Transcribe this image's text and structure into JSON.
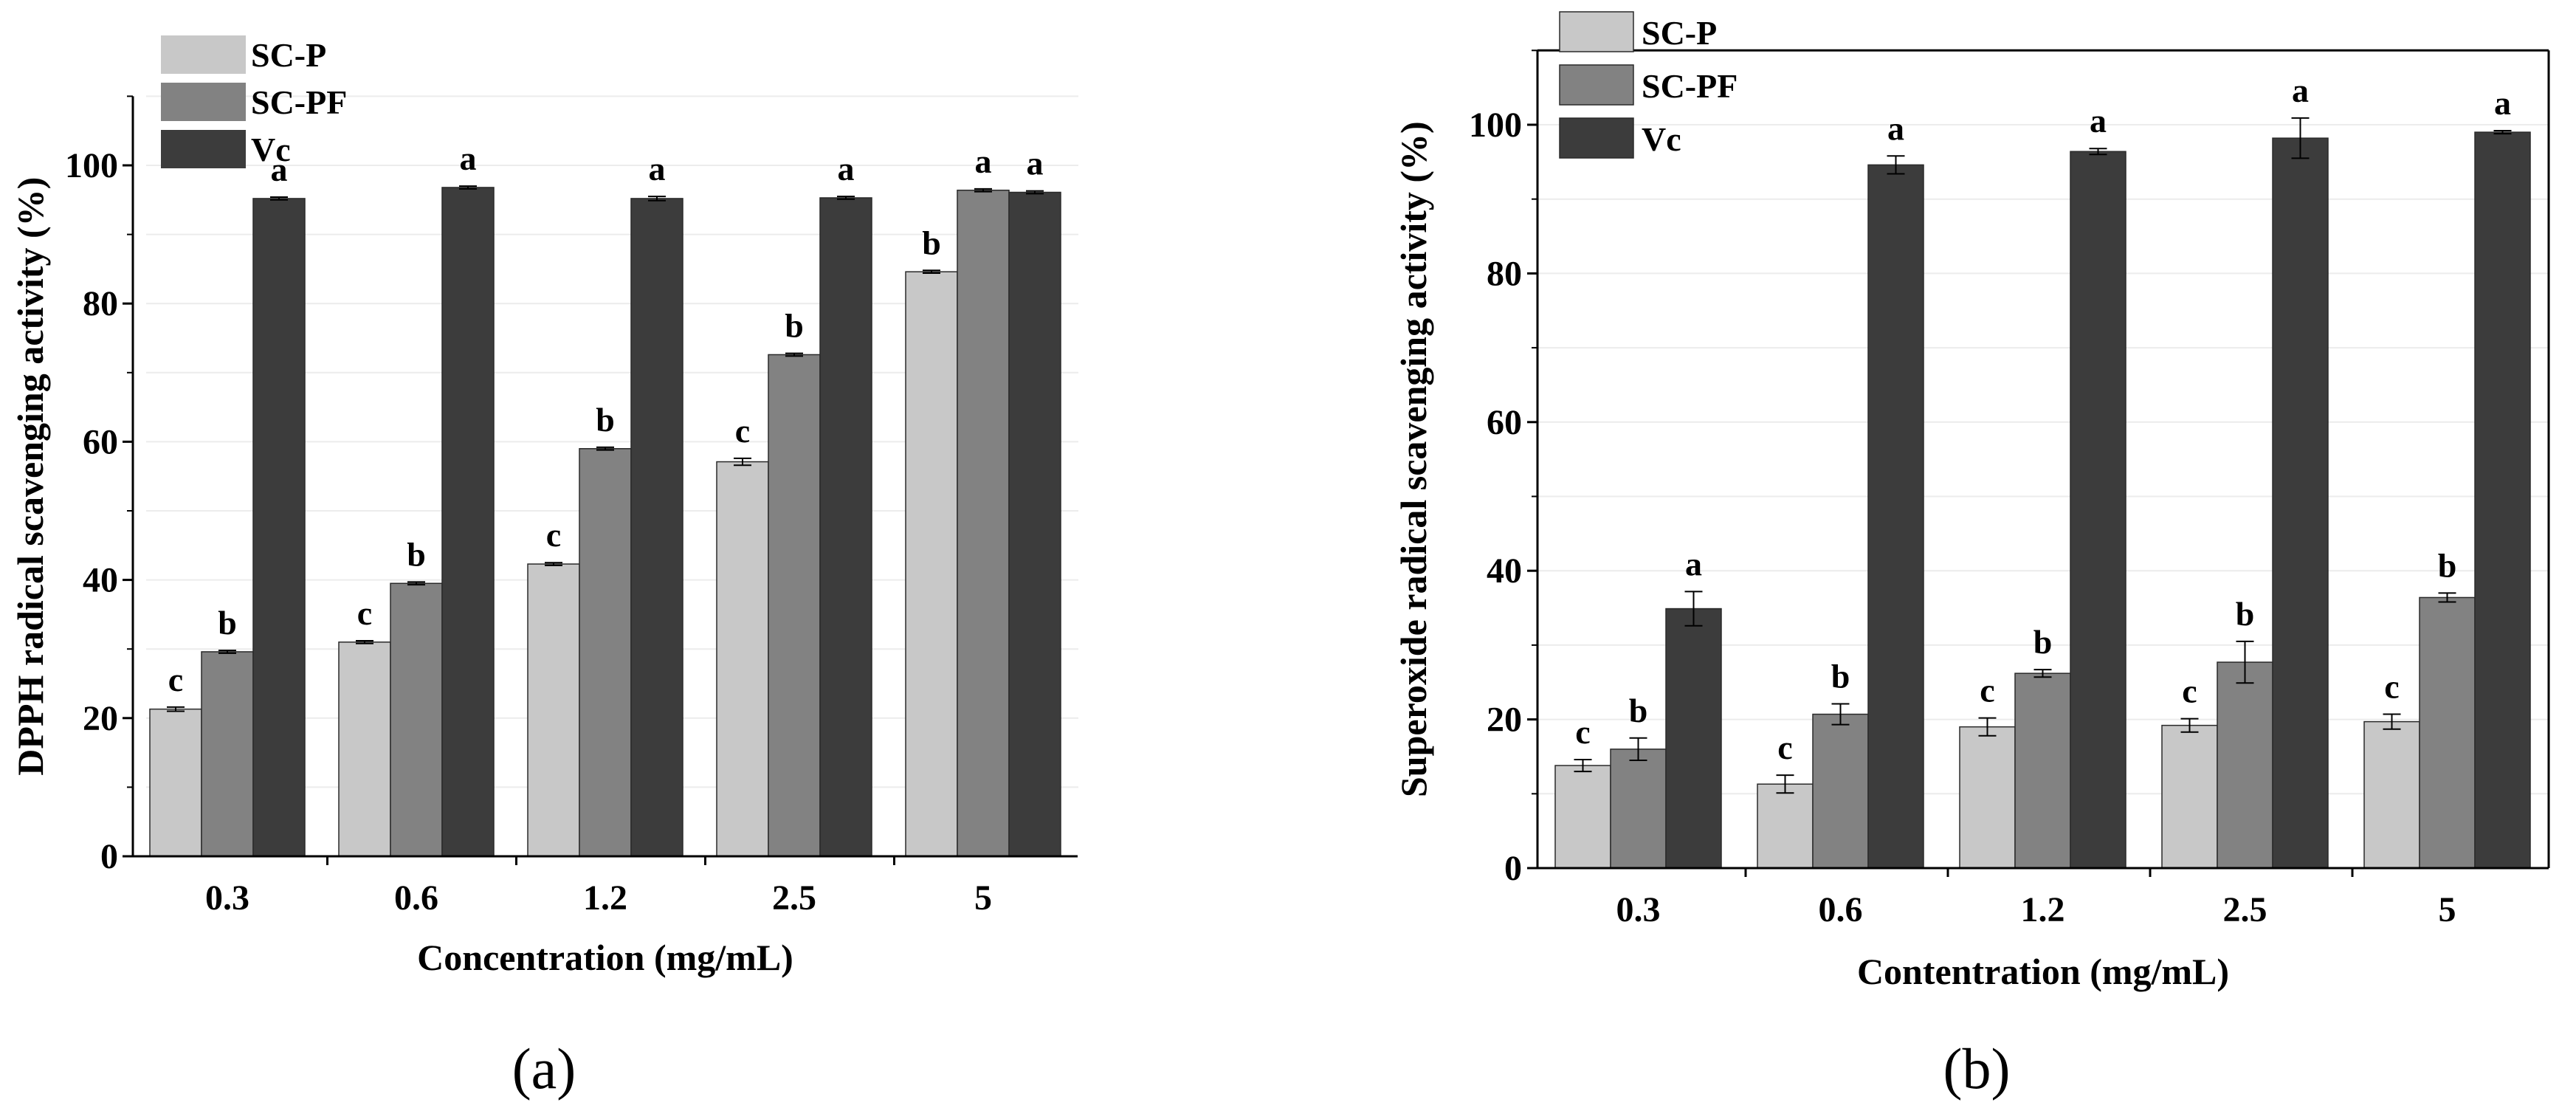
{
  "figure": {
    "panel_labels": [
      "(a)",
      "(b)"
    ]
  },
  "colors": {
    "sc_p": "#c8c8c8",
    "sc_pf": "#828282",
    "vc": "#3c3c3c",
    "axis": "#000000"
  },
  "chart_data": [
    {
      "id": "a",
      "type": "bar",
      "panel_label": "(a)",
      "xlabel": "Concentration (mg/mL)",
      "ylabel": "DPPH radical scavenging activity (%)",
      "categories": [
        "0.3",
        "0.6",
        "1.2",
        "2.5",
        "5"
      ],
      "ylim": [
        0,
        110
      ],
      "yticks": [
        0,
        20,
        40,
        60,
        80,
        100
      ],
      "legend_position": "top-left",
      "series": [
        {
          "name": "SC-P",
          "color": "#c8c8c8",
          "values": [
            21.3,
            31.0,
            42.3,
            57.1,
            84.6
          ],
          "errors": [
            0.3,
            0.2,
            0.2,
            0.5,
            0.2
          ],
          "labels": [
            "c",
            "c",
            "c",
            "c",
            "b"
          ]
        },
        {
          "name": "SC-PF",
          "color": "#828282",
          "values": [
            29.6,
            39.5,
            59.0,
            72.6,
            96.4
          ],
          "errors": [
            0.2,
            0.2,
            0.2,
            0.2,
            0.2
          ],
          "labels": [
            "b",
            "b",
            "b",
            "b",
            "a"
          ]
        },
        {
          "name": "Vc",
          "color": "#3c3c3c",
          "values": [
            95.2,
            96.8,
            95.2,
            95.3,
            96.1
          ],
          "errors": [
            0.2,
            0.2,
            0.3,
            0.2,
            0.2
          ],
          "labels": [
            "a",
            "a",
            "a",
            "a",
            "a"
          ]
        }
      ]
    },
    {
      "id": "b",
      "type": "bar",
      "panel_label": "(b)",
      "xlabel": "Contentration (mg/mL)",
      "ylabel": "Superoxide radical scavenging activity (%)",
      "categories": [
        "0.3",
        "0.6",
        "1.2",
        "2.5",
        "5"
      ],
      "ylim": [
        0,
        110
      ],
      "yticks": [
        0,
        20,
        40,
        60,
        80,
        100
      ],
      "legend_position": "top-left",
      "series": [
        {
          "name": "SC-P",
          "color": "#c8c8c8",
          "values": [
            13.8,
            11.3,
            19.0,
            19.2,
            19.7
          ],
          "errors": [
            0.8,
            1.2,
            1.2,
            0.9,
            1.0
          ],
          "labels": [
            "c",
            "c",
            "c",
            "c",
            "c"
          ]
        },
        {
          "name": "SC-PF",
          "color": "#828282",
          "values": [
            16.0,
            20.7,
            26.2,
            27.7,
            36.4
          ],
          "errors": [
            1.5,
            1.4,
            0.5,
            2.8,
            0.6
          ],
          "labels": [
            "b",
            "b",
            "b",
            "b",
            "b"
          ]
        },
        {
          "name": "Vc",
          "color": "#3c3c3c",
          "values": [
            34.9,
            94.6,
            96.4,
            98.2,
            99.0
          ],
          "errors": [
            2.3,
            1.2,
            0.4,
            2.7,
            0.2
          ],
          "labels": [
            "a",
            "a",
            "a",
            "a",
            "a"
          ]
        }
      ]
    }
  ]
}
